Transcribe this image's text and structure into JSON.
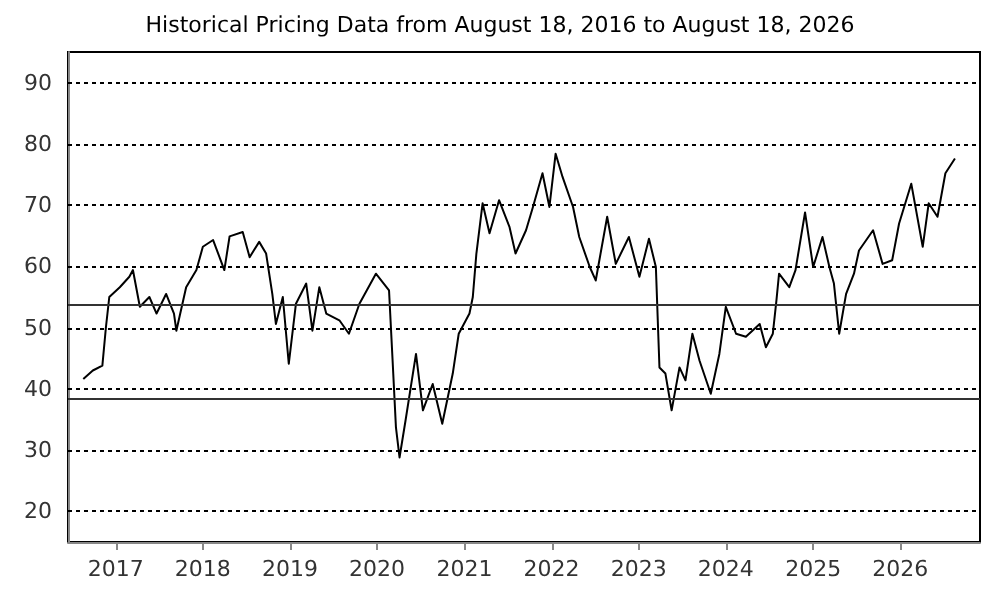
{
  "chart_data": {
    "type": "line",
    "title": "Historical Pricing Data from August 18, 2016 to August 18, 2026",
    "x": [
      "2016-08-18",
      "2016-09-27",
      "2016-11-06",
      "2016-11-21",
      "2016-12-05",
      "2017-01-18",
      "2017-02-27",
      "2017-03-14",
      "2017-04-12",
      "2017-05-22",
      "2017-06-21",
      "2017-07-31",
      "2017-09-02",
      "2017-09-12",
      "2017-10-23",
      "2017-12-05",
      "2018-01-01",
      "2018-02-13",
      "2018-04-01",
      "2018-04-23",
      "2018-06-17",
      "2018-07-16",
      "2018-08-25",
      "2018-09-23",
      "2018-10-19",
      "2018-11-03",
      "2018-12-02",
      "2018-12-27",
      "2019-01-26",
      "2019-03-10",
      "2019-04-05",
      "2019-05-04",
      "2019-06-02",
      "2019-07-27",
      "2019-09-05",
      "2019-10-19",
      "2019-12-27",
      "2020-02-20",
      "2020-03-06",
      "2020-03-20",
      "2020-04-04",
      "2020-04-29",
      "2020-06-12",
      "2020-07-11",
      "2020-08-21",
      "2020-09-30",
      "2020-11-13",
      "2020-12-08",
      "2021-01-22",
      "2021-02-05",
      "2021-02-20",
      "2021-03-18",
      "2021-04-16",
      "2021-05-26",
      "2021-07-09",
      "2021-08-03",
      "2021-09-16",
      "2021-10-15",
      "2021-11-24",
      "2021-12-23",
      "2022-01-18",
      "2022-02-16",
      "2022-04-01",
      "2022-04-27",
      "2022-06-10",
      "2022-07-05",
      "2022-08-22",
      "2022-09-27",
      "2022-11-21",
      "2023-01-04",
      "2023-02-13",
      "2023-03-14",
      "2023-03-29",
      "2023-04-23",
      "2023-05-19",
      "2023-06-21",
      "2023-07-16",
      "2023-08-14",
      "2023-09-13",
      "2023-10-30",
      "2023-12-05",
      "2024-01-01",
      "2024-02-13",
      "2024-03-25",
      "2024-05-22",
      "2024-06-17",
      "2024-07-16",
      "2024-07-31",
      "2024-08-11",
      "2024-09-23",
      "2024-10-19",
      "2024-11-28",
      "2025-01-01",
      "2025-02-09",
      "2025-03-10",
      "2025-03-29",
      "2025-04-20",
      "2025-05-19",
      "2025-06-21",
      "2025-07-12",
      "2025-09-09",
      "2025-10-19",
      "2025-11-28",
      "2025-12-27",
      "2026-02-16",
      "2026-04-05",
      "2026-04-30",
      "2026-06-06",
      "2026-07-09",
      "2026-08-18"
    ],
    "series": [
      {
        "color": "#000000",
        "values": [
          41.6,
          43,
          43.8,
          50.1,
          55,
          56.6,
          58.3,
          59.4,
          53.4,
          55,
          52.3,
          55.5,
          52.3,
          49.5,
          56.6,
          59.4,
          63.2,
          64.3,
          59.4,
          64.9,
          65.6,
          61.5,
          64,
          62.1,
          55.5,
          50.6,
          55,
          44.1,
          53.9,
          57.2,
          49.5,
          56.6,
          52.3,
          51.2,
          49,
          53.9,
          58.8,
          56.1,
          44.6,
          33.7,
          28.8,
          34.8,
          45.7,
          36.5,
          40.8,
          34.3,
          42.5,
          49,
          52.3,
          55,
          62.1,
          70.3,
          65.4,
          70.8,
          66.4,
          62.1,
          65.9,
          69.7,
          75.2,
          69.7,
          78.4,
          74.6,
          69.7,
          64.8,
          59.9,
          57.7,
          68.1,
          60.4,
          64.8,
          58.3,
          64.5,
          59.9,
          43.5,
          42.5,
          36.5,
          43.5,
          41.4,
          49,
          44.6,
          39.2,
          45.7,
          53.4,
          49,
          48.5,
          50.6,
          46.8,
          49,
          54.4,
          58.8,
          56.6,
          59.4,
          68.8,
          59.9,
          64.8,
          59.9,
          57.2,
          49,
          55.5,
          58.8,
          62.6,
          65.9,
          60.4,
          61,
          67,
          73.5,
          63.2,
          70.3,
          68.1,
          75.2,
          77.6
        ]
      }
    ],
    "xlim": [
      "2016-06-15",
      "2026-12-01"
    ],
    "xticks": [
      {
        "value": "2017-01-01",
        "label": "2017"
      },
      {
        "value": "2018-01-01",
        "label": "2018"
      },
      {
        "value": "2019-01-01",
        "label": "2019"
      },
      {
        "value": "2020-01-01",
        "label": "2020"
      },
      {
        "value": "2021-01-01",
        "label": "2021"
      },
      {
        "value": "2022-01-01",
        "label": "2022"
      },
      {
        "value": "2023-01-01",
        "label": "2023"
      },
      {
        "value": "2024-01-01",
        "label": "2024"
      },
      {
        "value": "2025-01-01",
        "label": "2025"
      },
      {
        "value": "2026-01-01",
        "label": "2026"
      }
    ],
    "ylim": [
      15,
      95
    ],
    "yticks": [
      20,
      30,
      40,
      50,
      60,
      70,
      80,
      90
    ],
    "ref_lines": [
      {
        "axis": "y",
        "value": 53.7,
        "color": "#333333",
        "line_style": "solid"
      },
      {
        "axis": "y",
        "value": 38.3,
        "color": "#333333",
        "line_style": "solid"
      }
    ],
    "grid": "y",
    "line_style": "solid",
    "marker": "none"
  }
}
